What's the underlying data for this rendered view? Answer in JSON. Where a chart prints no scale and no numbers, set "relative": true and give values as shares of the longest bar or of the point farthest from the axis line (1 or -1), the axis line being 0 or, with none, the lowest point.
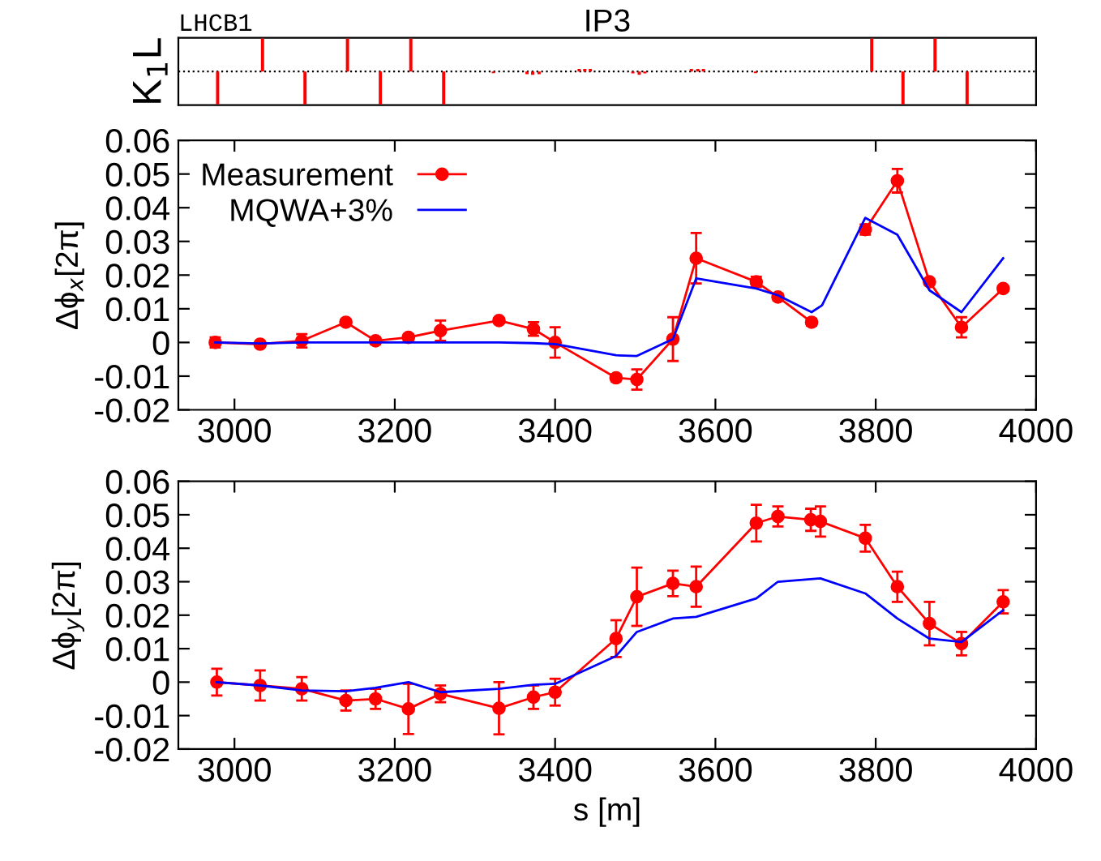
{
  "chart_data": [
    {
      "type": "bar",
      "title": "IP3",
      "ylabel": "K$_{1}$L",
      "annotations": [
        "LHCB1"
      ],
      "relative": true,
      "xlim": [
        2930,
        4000
      ],
      "ref_lines": [
        {
          "axis": "y",
          "value": 0,
          "color": "#000000",
          "line_style": "dotted"
        }
      ],
      "series": [
        {
          "color": "#ff0000",
          "x": [
            2979,
            3035,
            3088,
            3141,
            3182,
            3220,
            3261,
            3323,
            3365,
            3372,
            3380,
            3430,
            3437,
            3444,
            3497,
            3505,
            3512,
            3570,
            3578,
            3585,
            3650,
            3795,
            3834,
            3874,
            3914
          ],
          "values": [
            -1,
            1,
            -1,
            1,
            -1,
            1,
            -1,
            -0.05,
            -0.08,
            -0.1,
            -0.08,
            0.08,
            0.08,
            0.08,
            -0.06,
            -0.1,
            -0.06,
            0.08,
            0.08,
            0.08,
            -0.05,
            1,
            -1,
            1,
            -1
          ]
        }
      ]
    },
    {
      "type": "line",
      "ylabel": "Δϕ$_{x}$[2π]",
      "xlim": [
        2930,
        4000
      ],
      "ylim": [
        -0.02,
        0.06
      ],
      "xticks": [
        3000,
        3200,
        3400,
        3600,
        3800,
        4000
      ],
      "yticks": [
        -0.02,
        -0.01,
        0,
        0.01,
        0.02,
        0.03,
        0.04,
        0.05,
        0.06
      ],
      "legend": "top left",
      "series": [
        {
          "name": "Measurement",
          "color": "#ff0000",
          "marker": "circle",
          "x": [
            2976,
            3032,
            3084,
            3139,
            3176,
            3217,
            3257,
            3330,
            3373,
            3400,
            3476,
            3502,
            3547,
            3576,
            3651,
            3678,
            3720,
            3750,
            3787,
            3827,
            3867,
            3907,
            3959
          ],
          "values": [
            0,
            -0.0005,
            0.0005,
            0.006,
            0.0005,
            0.0015,
            0.0035,
            0.0065,
            0.004,
            0,
            -0.0105,
            -0.011,
            0.001,
            0.025,
            0.018,
            0.0135,
            0.006,
            null,
            0.0335,
            0.048,
            0.018,
            0.0045,
            0.016
          ],
          "errors": [
            0.0015,
            0.0005,
            0.002,
            0.0008,
            0.001,
            0.001,
            0.003,
            0.0008,
            0.002,
            0.0045,
            0.001,
            0.003,
            0.0065,
            0.0075,
            0.0015,
            0.001,
            0.001,
            null,
            0.0015,
            0.0035,
            0.0008,
            0.003,
            0.0008
          ]
        },
        {
          "name": "MQWA+3%",
          "color": "#0000ff",
          "x": [
            2976,
            3032,
            3084,
            3139,
            3176,
            3217,
            3257,
            3330,
            3373,
            3400,
            3476,
            3502,
            3547,
            3576,
            3651,
            3678,
            3720,
            3733,
            3787,
            3827,
            3867,
            3907,
            3959
          ],
          "values": [
            0,
            -0.0003,
            0,
            0,
            0,
            0,
            0,
            0,
            -0.0002,
            -0.0005,
            -0.0038,
            -0.004,
            0.001,
            0.019,
            0.016,
            0.014,
            0.009,
            0.011,
            0.037,
            0.032,
            0.0155,
            0.009,
            0.025
          ]
        }
      ]
    },
    {
      "type": "line",
      "ylabel": "Δϕ$_{y}$[2π]",
      "xlabel": "s [m]",
      "xlim": [
        2930,
        4000
      ],
      "ylim": [
        -0.02,
        0.06
      ],
      "xticks": [
        3000,
        3200,
        3400,
        3600,
        3800,
        4000
      ],
      "yticks": [
        -0.02,
        -0.01,
        0,
        0.01,
        0.02,
        0.03,
        0.04,
        0.05,
        0.06
      ],
      "series": [
        {
          "color": "#ff0000",
          "marker": "circle",
          "x": [
            2978,
            3032,
            3084,
            3139,
            3176,
            3217,
            3257,
            3330,
            3373,
            3400,
            3476,
            3502,
            3547,
            3576,
            3651,
            3678,
            3719,
            3731,
            3787,
            3827,
            3867,
            3907,
            3959
          ],
          "values": [
            0,
            -0.001,
            -0.002,
            -0.0055,
            -0.005,
            -0.008,
            -0.0035,
            -0.0078,
            -0.0045,
            -0.003,
            0.013,
            0.0255,
            0.0295,
            0.0285,
            0.0475,
            0.0495,
            0.0485,
            0.048,
            0.043,
            0.0285,
            0.0175,
            0.0115,
            0.024
          ],
          "errors": [
            0.004,
            0.0045,
            0.0035,
            0.003,
            0.003,
            0.0075,
            0.0025,
            0.0078,
            0.0035,
            0.004,
            0.0055,
            0.0087,
            0.0038,
            0.006,
            0.0055,
            0.003,
            0.0033,
            0.0045,
            0.004,
            0.0045,
            0.0065,
            0.0035,
            0.0035
          ]
        },
        {
          "color": "#0000ff",
          "x": [
            2978,
            3032,
            3084,
            3139,
            3176,
            3217,
            3257,
            3330,
            3373,
            3400,
            3476,
            3502,
            3547,
            3576,
            3651,
            3678,
            3731,
            3787,
            3827,
            3867,
            3907,
            3959
          ],
          "values": [
            0,
            -0.001,
            -0.0025,
            -0.0027,
            -0.0017,
            0,
            -0.003,
            -0.002,
            -0.0008,
            -0.0005,
            0.0078,
            0.015,
            0.019,
            0.0195,
            0.025,
            0.03,
            0.031,
            0.0265,
            0.019,
            0.013,
            0.012,
            0.0215
          ]
        }
      ]
    }
  ]
}
